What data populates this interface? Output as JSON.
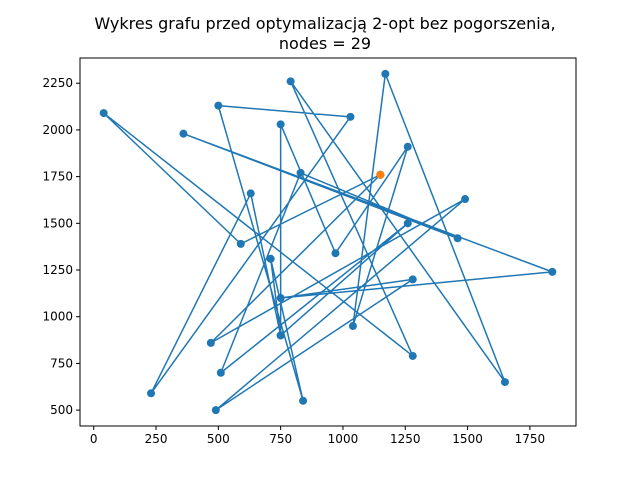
{
  "chart_data": {
    "type": "line",
    "title_lines": [
      "Wykres grafu przed optymalizacją 2-opt bez pogorszenia,",
      "nodes = 29"
    ],
    "xlabel": "",
    "ylabel": "",
    "xlim": [
      -55,
      1935
    ],
    "ylim": [
      415,
      2385
    ],
    "xticks": [
      0,
      250,
      500,
      750,
      1000,
      1250,
      1500,
      1750
    ],
    "yticks": [
      500,
      750,
      1000,
      1250,
      1500,
      1750,
      2000,
      2250
    ],
    "grid": false,
    "legend": false,
    "colors": {
      "route": "#1f77b4",
      "start": "#ff7f0e"
    },
    "start": {
      "x": 1150,
      "y": 1760
    },
    "route": [
      {
        "x": 1150,
        "y": 1760
      },
      {
        "x": 470,
        "y": 860
      },
      {
        "x": 1490,
        "y": 1630
      },
      {
        "x": 490,
        "y": 500
      },
      {
        "x": 1280,
        "y": 1200
      },
      {
        "x": 750,
        "y": 1100
      },
      {
        "x": 1840,
        "y": 1240
      },
      {
        "x": 360,
        "y": 1980
      },
      {
        "x": 1460,
        "y": 1420
      },
      {
        "x": 830,
        "y": 1770
      },
      {
        "x": 510,
        "y": 700
      },
      {
        "x": 1260,
        "y": 1500
      },
      {
        "x": 750,
        "y": 900
      },
      {
        "x": 710,
        "y": 1310
      },
      {
        "x": 840,
        "y": 550
      },
      {
        "x": 500,
        "y": 2130
      },
      {
        "x": 1030,
        "y": 2070
      },
      {
        "x": 230,
        "y": 590
      },
      {
        "x": 630,
        "y": 1660
      },
      {
        "x": 750,
        "y": 900
      },
      {
        "x": 750,
        "y": 2030
      },
      {
        "x": 970,
        "y": 1340
      },
      {
        "x": 1260,
        "y": 1910
      },
      {
        "x": 1040,
        "y": 950
      },
      {
        "x": 1170,
        "y": 2300
      },
      {
        "x": 1650,
        "y": 650
      },
      {
        "x": 790,
        "y": 2260
      },
      {
        "x": 1280,
        "y": 790
      },
      {
        "x": 40,
        "y": 2090
      },
      {
        "x": 590,
        "y": 1390
      },
      {
        "x": 1150,
        "y": 1760
      }
    ]
  }
}
